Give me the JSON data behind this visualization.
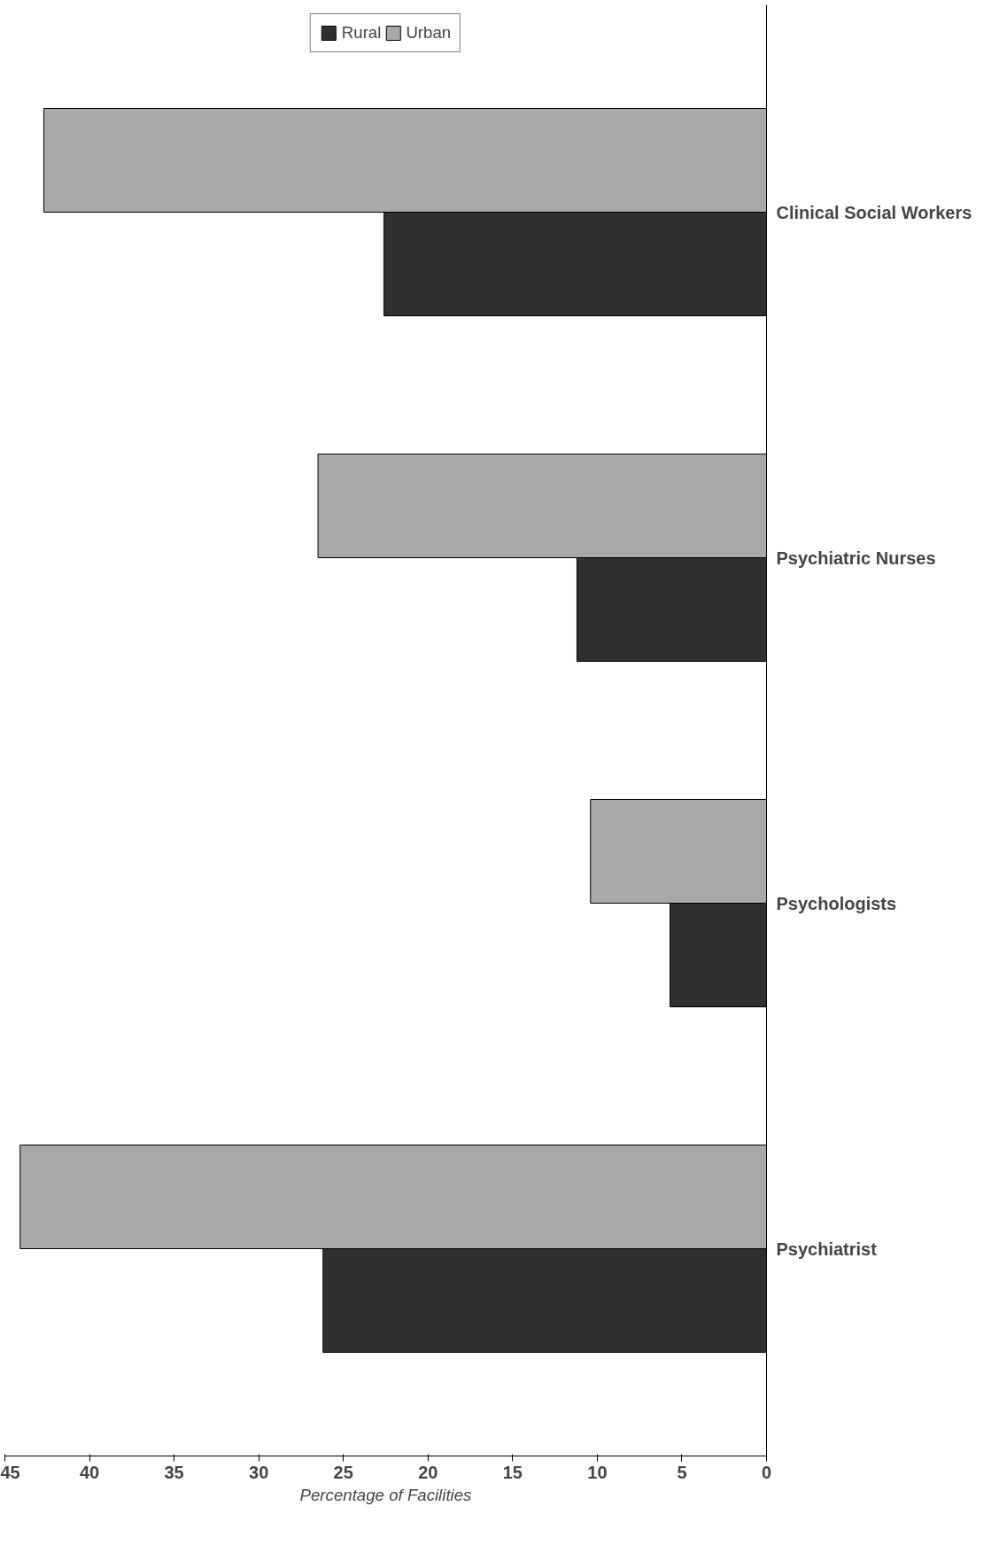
{
  "chart_data": {
    "type": "bar",
    "orientation": "horizontal",
    "xlabel": "Percentage of Facilities",
    "categories": [
      "Clinical Social Workers",
      "Psychiatric Nurses",
      "Psychologists",
      "Psychiatrist"
    ],
    "series": [
      {
        "name": "Rural",
        "color": "#303030",
        "values": [
          22.6,
          11.2,
          5.7,
          26.2
        ]
      },
      {
        "name": "Urban",
        "color": "#a8a8a8",
        "values": [
          42.7,
          26.5,
          10.4,
          44.1
        ]
      }
    ],
    "xlim": [
      45,
      0
    ],
    "xticks": [
      45,
      40,
      35,
      30,
      25,
      20,
      15,
      10,
      5,
      0
    ],
    "grid": false,
    "legend": "top"
  }
}
